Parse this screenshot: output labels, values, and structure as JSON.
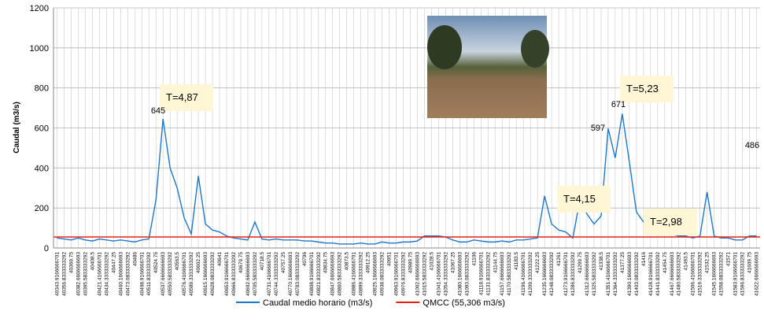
{
  "chart_data": {
    "type": "line",
    "y_label": "Caudal  (m3/s)",
    "categories": [
      "40343.9166666701",
      "40356.8333333292",
      "40369.75",
      "40382.6666666693",
      "40395.5833333292",
      "40408.5",
      "40421.4166666701",
      "40434.3333333292",
      "40447.25",
      "40460.1666666693",
      "40473.0833333292",
      "40486",
      "40498.9166666701",
      "40511.8333333292",
      "40524.75",
      "40537.6666666693",
      "40550.5833333292",
      "40563.5",
      "40576.4166666701",
      "40589.3333333292",
      "40602.25",
      "40615.1666666693",
      "40628.0833333292",
      "40641",
      "40653.9166666701",
      "40666.8333333292",
      "40679.75",
      "40692.6666666693",
      "40705.5833333292",
      "40718.5",
      "40731.4166666701",
      "40744.3333333292",
      "40757.25",
      "40770.1666666693",
      "40783.0833333292",
      "40796",
      "40808.9166666701",
      "40821.8333333292",
      "40834.75",
      "40847.6666666693",
      "40860.5833333292",
      "40873.5",
      "40886.4166666701",
      "40899.3333333292",
      "40912.25",
      "40925.1666666693",
      "40938.0833333292",
      "40951",
      "40963.9166666701",
      "40976.8333333292",
      "40989.75",
      "41002.6666666693",
      "41015.5833333292",
      "41028.5",
      "41041.4166666701",
      "41054.3333333292",
      "41067.25",
      "41080.1666666693",
      "41093.0833333292",
      "41106",
      "41118.9166666701",
      "41131.8333333292",
      "41144.75",
      "41157.6666666693",
      "41170.5833333292",
      "41183.5",
      "41196.4166666701",
      "41209.3333333292",
      "41222.25",
      "41235.1666666693",
      "41248.0833333292",
      "41261",
      "41273.9166666701",
      "41286.8333333292",
      "41299.75",
      "41312.6666666693",
      "41325.5833333292",
      "41338.5",
      "41351.4166666701",
      "41364.3333333292",
      "41377.25",
      "41390.1666666693",
      "41403.0833333292",
      "41416",
      "41428.9166666701",
      "41441.8333333292",
      "41454.75",
      "41467.6666666693",
      "41480.5833333292",
      "41493.5",
      "41506.4166666701",
      "41519.3333333292",
      "41532.25",
      "41545.1666666693",
      "41558.0833333292",
      "41571",
      "41583.9166666701",
      "41596.8333333292",
      "41609.75",
      "41622.6666666693"
    ],
    "series": [
      {
        "name": "Caudal medio horario (m3/s)",
        "color": "#1f77c8",
        "values": [
          50,
          45,
          40,
          50,
          40,
          35,
          45,
          40,
          35,
          40,
          35,
          30,
          40,
          45,
          240,
          645,
          400,
          300,
          150,
          70,
          360,
          120,
          90,
          80,
          60,
          50,
          45,
          40,
          130,
          45,
          40,
          45,
          40,
          40,
          40,
          35,
          35,
          30,
          25,
          25,
          20,
          20,
          20,
          25,
          20,
          20,
          30,
          25,
          25,
          30,
          30,
          35,
          60,
          60,
          60,
          55,
          40,
          30,
          30,
          40,
          35,
          30,
          30,
          35,
          30,
          40,
          40,
          45,
          50,
          260,
          120,
          90,
          80,
          50,
          240,
          170,
          120,
          160,
          597,
          450,
          671,
          430,
          180,
          130,
          100,
          80,
          90,
          70,
          60,
          60,
          50,
          60,
          280,
          60,
          50,
          50,
          40,
          40,
          60,
          60
        ]
      },
      {
        "name": "QMCC (55,306 m3/s)",
        "color": "#e8201a",
        "value": 55.306
      }
    ],
    "annotations": [
      "T=4,87",
      "645",
      "T=5,23",
      "671",
      "T=4,15",
      "597",
      "T=2,98",
      "486"
    ],
    "ylim": [
      0,
      1200
    ],
    "yticks": [
      0,
      200,
      400,
      600,
      800,
      1000,
      1200
    ],
    "grid": true
  }
}
